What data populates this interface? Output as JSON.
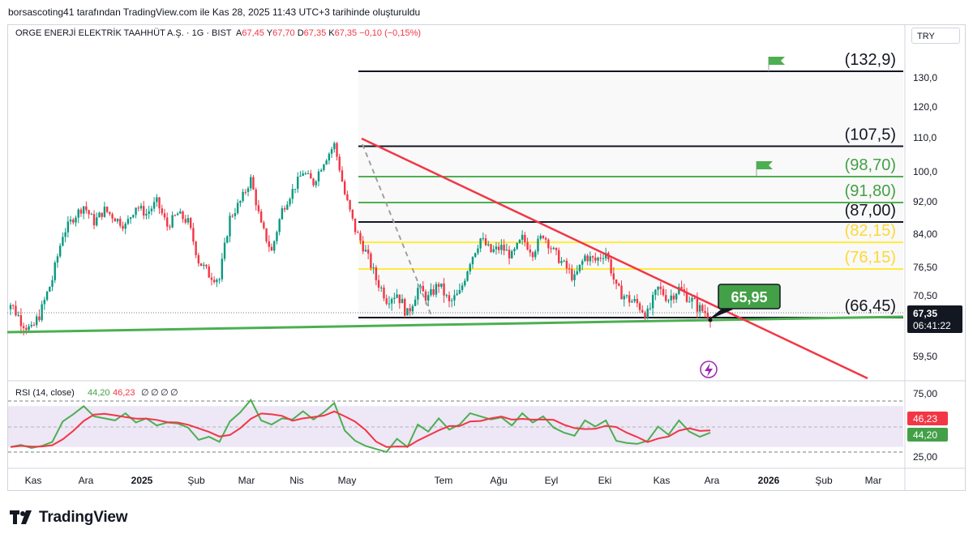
{
  "header": {
    "attribution": "borsascoting41 tarafından TradingView.com ile Kas 28, 2025 11:43 UTC+3 tarihinde oluşturuldu"
  },
  "legend": {
    "symbol": "ORGE ENERJİ ELEKTRİK TAAHHÜT A.Ş. · 1G · BIST",
    "open_label": "A",
    "open": "67,45",
    "high_label": "Y",
    "high": "67,70",
    "low_label": "D",
    "low": "67,35",
    "close_label": "K",
    "close": "67,35",
    "change": "−0,10 (−0,15%)"
  },
  "currency": "TRY",
  "colors": {
    "up": "#089981",
    "down": "#f23645",
    "green_line": "#4caf50",
    "yellow_line": "#ffeb3b",
    "red_trend": "#f23645",
    "rsi_line": "#4caf50",
    "rsi_ma": "#f23645",
    "rsi_band": "#ede7f6"
  },
  "chart_data": [
    {
      "type": "candlestick",
      "price_axis_ticks": [
        "130,0",
        "120,0",
        "110,0",
        "100,0",
        "92,00",
        "84,00",
        "76,50",
        "70,50",
        "59,50"
      ],
      "time_axis_ticks": [
        "Kas",
        "Ara",
        "2025",
        "Şub",
        "Mar",
        "Nis",
        "May",
        "Tem",
        "Ağu",
        "Eyl",
        "Eki",
        "Kas",
        "Ara",
        "2026",
        "Şub",
        "Mar"
      ],
      "last_price": "67,35",
      "countdown": "06:41:22",
      "close_series": [
        69,
        66,
        64,
        68,
        74,
        84,
        88,
        91,
        87,
        90,
        88,
        86,
        91,
        89,
        92,
        86,
        89,
        87,
        78,
        75,
        74,
        88,
        92,
        98,
        86,
        80,
        90,
        95,
        100,
        97,
        103,
        108,
        94,
        85,
        80,
        74,
        70,
        71,
        67,
        72,
        70,
        73,
        69,
        71,
        78,
        83,
        80,
        81,
        79,
        83,
        80,
        84,
        80,
        77,
        74,
        79,
        78,
        80,
        72,
        70,
        69,
        67,
        72,
        70,
        72,
        70,
        68,
        67
      ],
      "levels": [
        {
          "label": "(132,9)",
          "value": 132.9,
          "color": "black"
        },
        {
          "label": "(107,5)",
          "value": 107.5,
          "color": "black"
        },
        {
          "label": "(98,70)",
          "value": 98.7,
          "color": "green"
        },
        {
          "label": "(91,80)",
          "value": 91.8,
          "color": "green"
        },
        {
          "label": "(87,00)",
          "value": 87.0,
          "color": "black"
        },
        {
          "label": "(82,15)",
          "value": 82.15,
          "color": "yellow"
        },
        {
          "label": "(76,15)",
          "value": 76.15,
          "color": "yellow"
        },
        {
          "label": "(66,45)",
          "value": 66.45,
          "color": "black"
        }
      ],
      "callout": "65,95"
    },
    {
      "type": "line",
      "title": "RSI (14, close)",
      "values_legend": [
        "44,20",
        "46,23",
        "∅",
        "∅",
        "∅",
        "∅"
      ],
      "axis_ticks": [
        "75,00",
        "25,00"
      ],
      "rsi_last": "44,20",
      "ma_last": "46,23",
      "rsi_series": [
        30,
        32,
        29,
        31,
        35,
        55,
        62,
        70,
        60,
        58,
        56,
        63,
        54,
        58,
        51,
        54,
        53,
        49,
        37,
        40,
        35,
        55,
        64,
        76,
        56,
        52,
        58,
        57,
        65,
        57,
        64,
        73,
        46,
        36,
        31,
        28,
        25,
        38,
        30,
        52,
        45,
        58,
        47,
        52,
        63,
        60,
        57,
        59,
        51,
        63,
        54,
        60,
        49,
        44,
        41,
        56,
        50,
        56,
        36,
        34,
        33,
        36,
        50,
        42,
        56,
        45,
        40,
        44
      ]
    }
  ]
}
